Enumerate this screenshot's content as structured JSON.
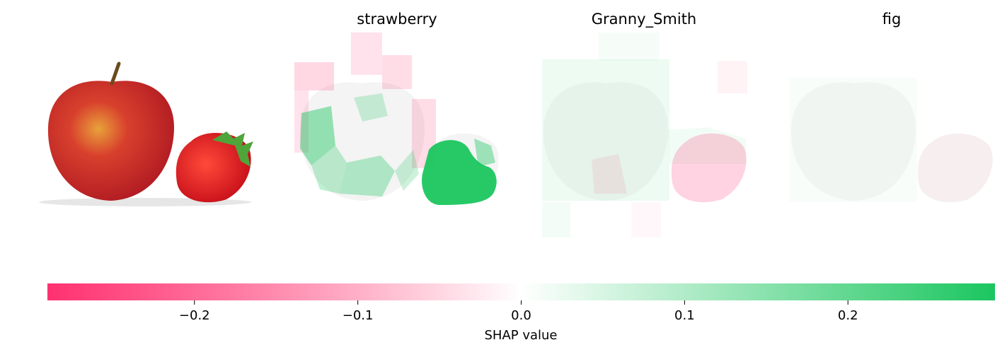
{
  "chart_data": {
    "type": "shap_image_plot",
    "panels": [
      {
        "title": "",
        "kind": "original_image"
      },
      {
        "title": "strawberry",
        "kind": "shap_overlay"
      },
      {
        "title": "Granny_Smith",
        "kind": "shap_overlay"
      },
      {
        "title": "fig",
        "kind": "shap_overlay"
      }
    ],
    "colorbar": {
      "label": "SHAP value",
      "range": [
        -0.29,
        0.29
      ],
      "ticks": [
        -0.2,
        -0.1,
        0.0,
        0.1,
        0.2
      ],
      "tick_labels": [
        "−0.2",
        "−0.1",
        "0.0",
        "0.1",
        "0.2"
      ],
      "negative_color": "#ff0d57",
      "positive_color": "#1bc65f"
    }
  }
}
